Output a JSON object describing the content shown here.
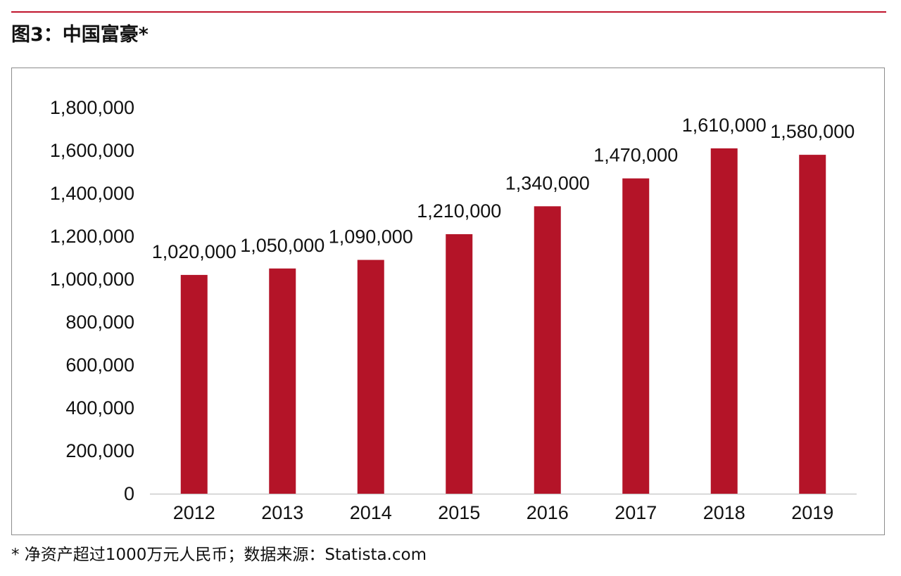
{
  "figure": {
    "title": "图3：中国富豪*",
    "footnote": "* 净资产超过1000万元人民币；数据来源：Statista.com"
  },
  "colors": {
    "bar": "#b41428",
    "rule": "#c0142c",
    "frame": "#8c8c8c",
    "axis": "#cccccc"
  },
  "chart_data": {
    "type": "bar",
    "title": "",
    "xlabel": "",
    "ylabel": "",
    "categories": [
      "2012",
      "2013",
      "2014",
      "2015",
      "2016",
      "2017",
      "2018",
      "2019"
    ],
    "values": [
      1020000,
      1050000,
      1090000,
      1210000,
      1340000,
      1470000,
      1610000,
      1580000
    ],
    "data_labels": [
      "1,020,000",
      "1,050,000",
      "1,090,000",
      "1,210,000",
      "1,340,000",
      "1,470,000",
      "1,610,000",
      "1,580,000"
    ],
    "ylim": [
      0,
      1800000
    ],
    "y_ticks": [
      0,
      200000,
      400000,
      600000,
      800000,
      1000000,
      1200000,
      1400000,
      1600000,
      1800000
    ],
    "y_tick_labels": [
      "0",
      "200,000",
      "400,000",
      "600,000",
      "800,000",
      "1,000,000",
      "1,200,000",
      "1,400,000",
      "1,600,000",
      "1,800,000"
    ],
    "grid": false,
    "legend": "none"
  }
}
